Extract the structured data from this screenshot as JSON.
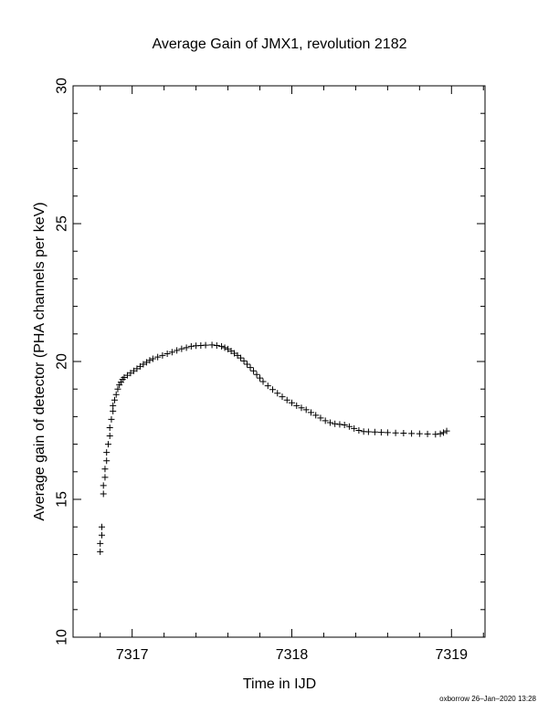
{
  "chart_data": {
    "type": "scatter",
    "title": "Average Gain of JMX1, revolution 2182",
    "xlabel": "Time in IJD",
    "ylabel": "Average gain of detector (PHA channels per keV)",
    "xlim": [
      7316.63,
      7319.21
    ],
    "ylim": [
      10,
      30
    ],
    "xticks": [
      7317,
      7318,
      7319
    ],
    "yticks": [
      10,
      15,
      20,
      25,
      30
    ],
    "grid": false,
    "marker": "+",
    "series": [
      {
        "x": [
          7316.8,
          7316.8,
          7316.81,
          7316.81,
          7316.82,
          7316.82,
          7316.83,
          7316.83,
          7316.84,
          7316.84,
          7316.85,
          7316.86,
          7316.86,
          7316.87,
          7316.88,
          7316.88,
          7316.89,
          7316.9,
          7316.91,
          7316.92,
          7316.93,
          7316.94,
          7316.95,
          7316.97,
          7316.99,
          7317.01,
          7317.03,
          7317.05,
          7317.07,
          7317.09,
          7317.11,
          7317.13,
          7317.16,
          7317.19,
          7317.22,
          7317.25,
          7317.28,
          7317.31,
          7317.34,
          7317.37,
          7317.4,
          7317.43,
          7317.46,
          7317.5,
          7317.53,
          7317.56,
          7317.58,
          7317.6,
          7317.62,
          7317.64,
          7317.66,
          7317.68,
          7317.7,
          7317.72,
          7317.74,
          7317.76,
          7317.78,
          7317.8,
          7317.82,
          7317.85,
          7317.88,
          7317.91,
          7317.94,
          7317.97,
          7318.0,
          7318.03,
          7318.06,
          7318.09,
          7318.12,
          7318.15,
          7318.18,
          7318.21,
          7318.24,
          7318.27,
          7318.3,
          7318.33,
          7318.36,
          7318.39,
          7318.42,
          7318.45,
          7318.48,
          7318.52,
          7318.56,
          7318.6,
          7318.65,
          7318.7,
          7318.75,
          7318.8,
          7318.85,
          7318.9,
          7318.93,
          7318.95,
          7318.97
        ],
        "y": [
          13.1,
          13.4,
          13.7,
          14.0,
          15.2,
          15.5,
          15.8,
          16.1,
          16.4,
          16.7,
          17.0,
          17.3,
          17.6,
          17.9,
          18.2,
          18.4,
          18.6,
          18.8,
          19.0,
          19.15,
          19.25,
          19.35,
          19.42,
          19.5,
          19.58,
          19.66,
          19.74,
          19.82,
          19.9,
          19.97,
          20.04,
          20.1,
          20.16,
          20.22,
          20.28,
          20.34,
          20.4,
          20.46,
          20.5,
          20.55,
          20.57,
          20.58,
          20.59,
          20.6,
          20.58,
          20.55,
          20.5,
          20.45,
          20.38,
          20.3,
          20.22,
          20.13,
          20.02,
          19.9,
          19.78,
          19.66,
          19.53,
          19.4,
          19.27,
          19.12,
          18.98,
          18.85,
          18.72,
          18.6,
          18.5,
          18.4,
          18.32,
          18.25,
          18.15,
          18.05,
          17.95,
          17.85,
          17.78,
          17.74,
          17.72,
          17.7,
          17.64,
          17.57,
          17.5,
          17.46,
          17.45,
          17.44,
          17.43,
          17.42,
          17.41,
          17.4,
          17.39,
          17.38,
          17.37,
          17.36,
          17.38,
          17.42,
          17.48
        ]
      }
    ]
  },
  "footer": {
    "stamp": "oxborrow 26–Jan–2020 13:28"
  }
}
